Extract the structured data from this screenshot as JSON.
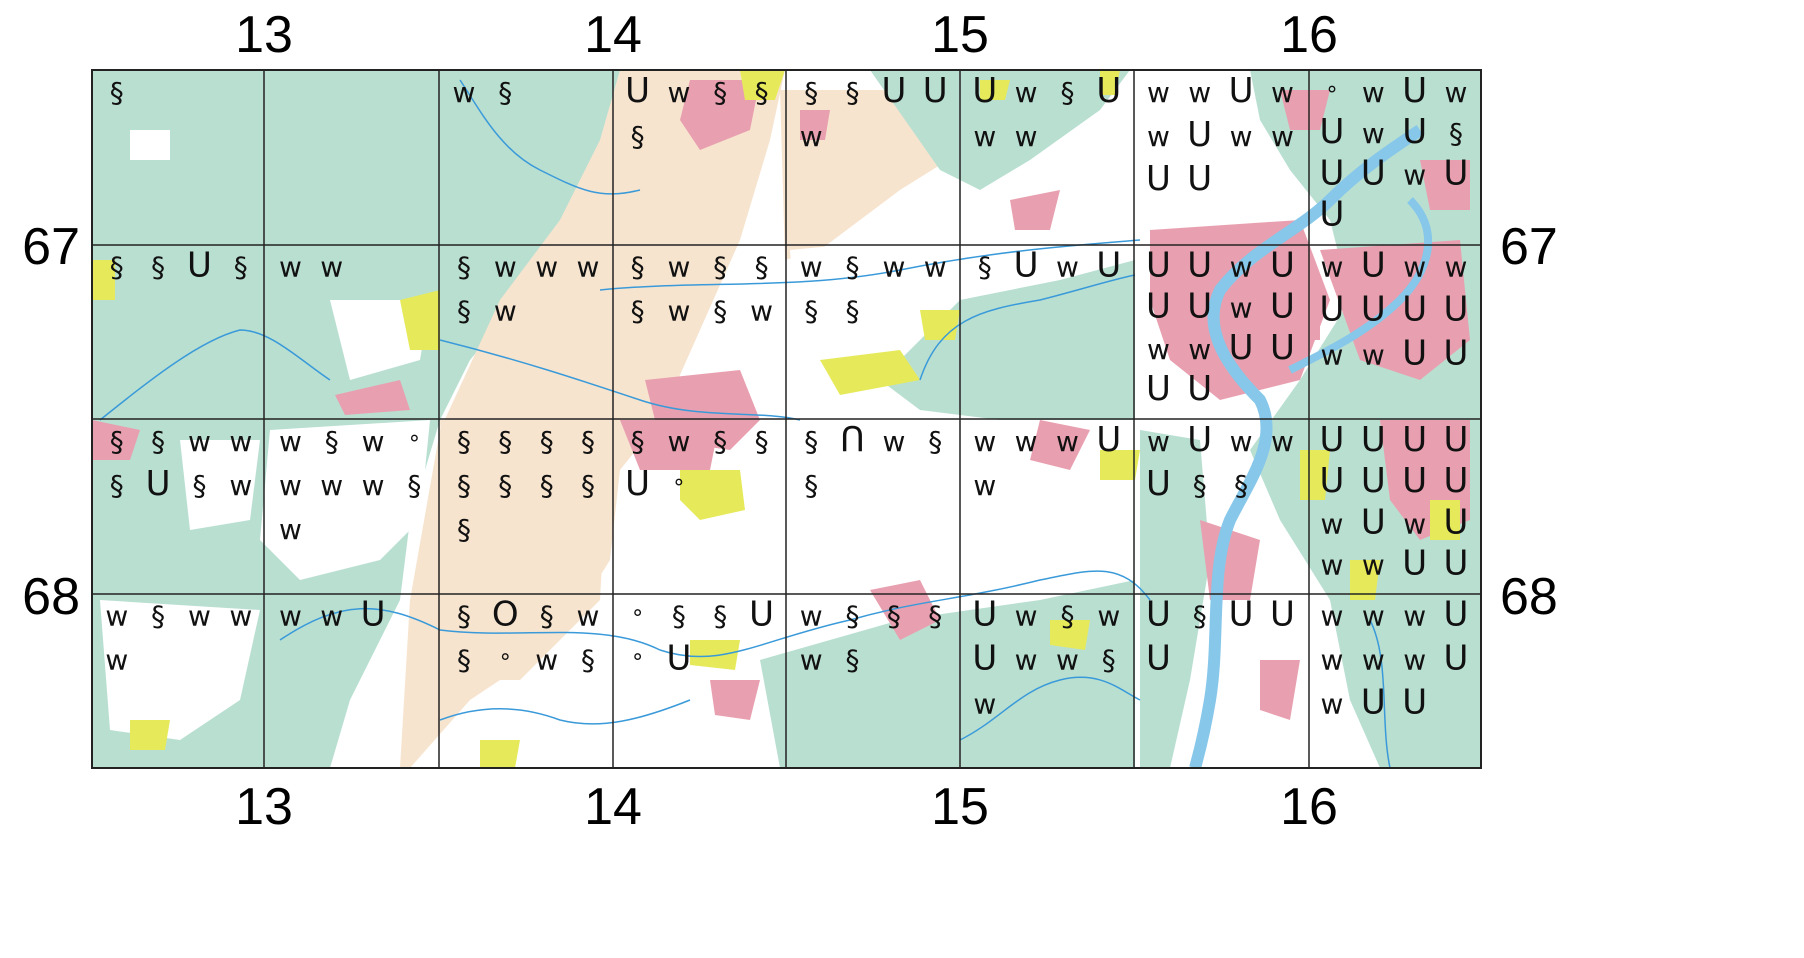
{
  "grid_labels": {
    "top": [
      "13",
      "14",
      "15",
      "16"
    ],
    "bottom": [
      "13",
      "14",
      "15",
      "16"
    ],
    "left": [
      "67",
      "68"
    ],
    "right": [
      "67",
      "68"
    ]
  },
  "colors": {
    "grassland": "#b9dfd1",
    "agriculture": "#f7e4cf",
    "urban": "#e8a0b0",
    "vegetation": "#e6ea5a",
    "water": "#86c7ea",
    "blank": "#ffffff",
    "gridline": "#222222"
  },
  "symbol_legend_names": {
    "§": "section-symbol",
    "w": "w-symbol",
    "u": "u-symbol",
    "n": "n-symbol",
    "o": "o-symbol",
    "°": "small-circle-symbol"
  },
  "cells": [
    {
      "col": 0,
      "row": 0,
      "symbols": [
        "§"
      ]
    },
    {
      "col": 2,
      "row": 0,
      "symbols": [
        "w",
        "§"
      ]
    },
    {
      "col": 3,
      "row": 0,
      "symbols": [
        "u",
        "w",
        "§",
        "§",
        "§"
      ]
    },
    {
      "col": 4,
      "row": 0,
      "symbols": [
        "§",
        "§",
        "u",
        "u",
        "w"
      ]
    },
    {
      "col": 5,
      "row": 0,
      "symbols": [
        "u",
        "w",
        "§",
        "u",
        "w",
        "w"
      ]
    },
    {
      "col": 6,
      "row": 0,
      "symbols": [
        "w",
        "w",
        "u",
        "w",
        "w",
        "u",
        "w",
        "w",
        "u",
        "u"
      ]
    },
    {
      "col": 7,
      "row": 0,
      "symbols": [
        "°",
        "w",
        "u",
        "w",
        "u",
        "w",
        "u",
        "§",
        "u",
        "u",
        "w",
        "u",
        "u"
      ]
    },
    {
      "col": 0,
      "row": 1,
      "symbols": [
        "§",
        "§",
        "u",
        "§"
      ]
    },
    {
      "col": 1,
      "row": 1,
      "symbols": [
        "w",
        "w"
      ]
    },
    {
      "col": 2,
      "row": 1,
      "symbols": [
        "§",
        "w",
        "w",
        "w",
        "§",
        "w"
      ]
    },
    {
      "col": 3,
      "row": 1,
      "symbols": [
        "§",
        "w",
        "§",
        "§",
        "§",
        "w",
        "§",
        "w"
      ]
    },
    {
      "col": 4,
      "row": 1,
      "symbols": [
        "w",
        "§",
        "w",
        "w",
        "§",
        "§"
      ]
    },
    {
      "col": 5,
      "row": 1,
      "symbols": [
        "§",
        "u",
        "w",
        "u"
      ]
    },
    {
      "col": 6,
      "row": 1,
      "symbols": [
        "u",
        "u",
        "w",
        "u",
        "u",
        "u",
        "w",
        "u",
        "w",
        "w",
        "u",
        "u",
        "u",
        "u"
      ]
    },
    {
      "col": 7,
      "row": 1,
      "symbols": [
        "w",
        "u",
        "w",
        "w",
        "u",
        "u",
        "u",
        "u",
        "w",
        "w",
        "u",
        "u"
      ]
    },
    {
      "col": 0,
      "row": 2,
      "symbols": [
        "§",
        "§",
        "w",
        "w",
        "§",
        "u",
        "§",
        "w"
      ]
    },
    {
      "col": 1,
      "row": 2,
      "symbols": [
        "w",
        "§",
        "w",
        "°",
        "w",
        "w",
        "w",
        "§",
        "w"
      ]
    },
    {
      "col": 2,
      "row": 2,
      "symbols": [
        "§",
        "§",
        "§",
        "§",
        "§",
        "§",
        "§",
        "§",
        "§"
      ]
    },
    {
      "col": 3,
      "row": 2,
      "symbols": [
        "§",
        "w",
        "§",
        "§",
        "u",
        "°"
      ]
    },
    {
      "col": 4,
      "row": 2,
      "symbols": [
        "§",
        "n",
        "w",
        "§",
        "§"
      ]
    },
    {
      "col": 5,
      "row": 2,
      "symbols": [
        "w",
        "w",
        "w",
        "u",
        "w"
      ]
    },
    {
      "col": 6,
      "row": 2,
      "symbols": [
        "w",
        "u",
        "w",
        "w",
        "u",
        "§",
        "§"
      ]
    },
    {
      "col": 7,
      "row": 2,
      "symbols": [
        "u",
        "u",
        "u",
        "u",
        "u",
        "u",
        "u",
        "u",
        "w",
        "u",
        "w",
        "u",
        "w",
        "w",
        "u",
        "u"
      ]
    },
    {
      "col": 0,
      "row": 3,
      "symbols": [
        "w",
        "§",
        "w",
        "w",
        "w"
      ]
    },
    {
      "col": 1,
      "row": 3,
      "symbols": [
        "w",
        "w",
        "u"
      ]
    },
    {
      "col": 2,
      "row": 3,
      "symbols": [
        "§",
        "o",
        "§",
        "w",
        "§",
        "°",
        "w",
        "§"
      ]
    },
    {
      "col": 3,
      "row": 3,
      "symbols": [
        "°",
        "§",
        "§",
        "u",
        "°",
        "u"
      ]
    },
    {
      "col": 4,
      "row": 3,
      "symbols": [
        "w",
        "§",
        "§",
        "§",
        "w",
        "§"
      ]
    },
    {
      "col": 5,
      "row": 3,
      "symbols": [
        "u",
        "w",
        "§",
        "w",
        "u",
        "w",
        "w",
        "§",
        "w"
      ]
    },
    {
      "col": 6,
      "row": 3,
      "symbols": [
        "u",
        "§",
        "u",
        "u",
        "u"
      ]
    },
    {
      "col": 7,
      "row": 3,
      "symbols": [
        "w",
        "w",
        "w",
        "u",
        "w",
        "w",
        "w",
        "u",
        "w",
        "u",
        "u"
      ]
    }
  ]
}
